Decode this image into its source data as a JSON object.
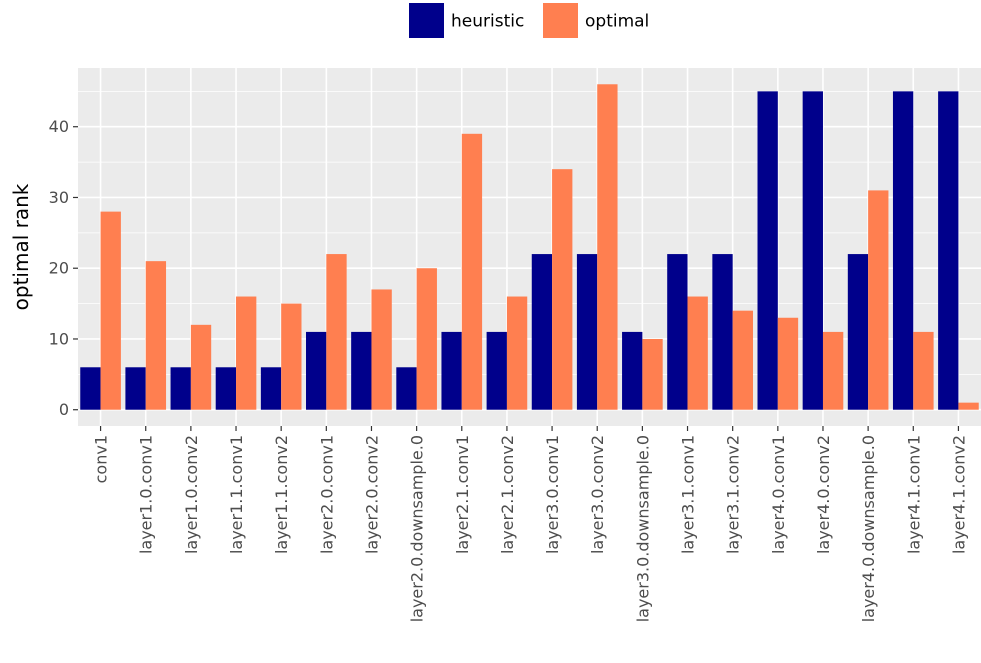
{
  "chart_data": {
    "type": "bar",
    "xlabel": "",
    "ylabel": "optimal rank",
    "ylim": [
      -2.3,
      48.3
    ],
    "yticks": [
      0,
      10,
      20,
      30,
      40
    ],
    "grid": true,
    "legend_position": "top",
    "categories": [
      "conv1",
      "layer1.0.conv1",
      "layer1.0.conv2",
      "layer1.1.conv1",
      "layer1.1.conv2",
      "layer2.0.conv1",
      "layer2.0.conv2",
      "layer2.0.downsample.0",
      "layer2.1.conv1",
      "layer2.1.conv2",
      "layer3.0.conv1",
      "layer3.0.conv2",
      "layer3.0.downsample.0",
      "layer3.1.conv1",
      "layer3.1.conv2",
      "layer4.0.conv1",
      "layer4.0.conv2",
      "layer4.0.downsample.0",
      "layer4.1.conv1",
      "layer4.1.conv2"
    ],
    "series": [
      {
        "name": "heuristic",
        "color": "#00008b",
        "values": [
          6,
          6,
          6,
          6,
          6,
          11,
          11,
          6,
          11,
          11,
          22,
          22,
          11,
          22,
          22,
          45,
          45,
          22,
          45,
          45
        ]
      },
      {
        "name": "optimal",
        "color": "#ff7f50",
        "values": [
          28,
          21,
          12,
          16,
          15,
          22,
          17,
          20,
          39,
          16,
          34,
          46,
          10,
          16,
          14,
          13,
          11,
          31,
          11,
          1
        ]
      }
    ],
    "colors": {
      "panel_background": "#ebebeb",
      "grid_major": "#ffffff",
      "tick_text": "#4d4d4d"
    }
  }
}
